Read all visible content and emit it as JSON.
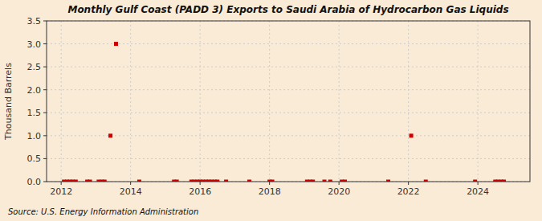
{
  "chart_data": {
    "type": "scatter",
    "title": "Monthly Gulf Coast (PADD 3) Exports to Saudi Arabia of Hydrocarbon Gas Liquids",
    "ylabel": "Thousand Barrels",
    "annotations": [
      "Source: U.S. Energy Information Administration"
    ],
    "x": [
      2013.42,
      2013.58,
      2022.08,
      2012.08,
      2012.17,
      2012.25,
      2012.33,
      2012.42,
      2012.75,
      2012.83,
      2013.08,
      2013.17,
      2013.25,
      2014.25,
      2015.25,
      2015.33,
      2015.75,
      2015.83,
      2015.92,
      2016.0,
      2016.08,
      2016.17,
      2016.25,
      2016.33,
      2016.42,
      2016.5,
      2016.75,
      2017.42,
      2018.0,
      2018.08,
      2019.08,
      2019.17,
      2019.25,
      2019.58,
      2019.75,
      2020.08,
      2020.17,
      2021.42,
      2022.5,
      2023.92,
      2024.5,
      2024.58,
      2024.67,
      2024.75
    ],
    "values": [
      1.0,
      3.0,
      1.0,
      0.0,
      0.0,
      0.0,
      0.0,
      0.0,
      0.0,
      0.0,
      0.0,
      0.0,
      0.0,
      0.0,
      0.0,
      0.0,
      0.0,
      0.0,
      0.0,
      0.0,
      0.0,
      0.0,
      0.0,
      0.0,
      0.0,
      0.0,
      0.0,
      0.0,
      0.0,
      0.0,
      0.0,
      0.0,
      0.0,
      0.0,
      0.0,
      0.0,
      0.0,
      0.0,
      0.0,
      0.0,
      0.0,
      0.0,
      0.0,
      0.0
    ],
    "color": "#cc0000",
    "marker": "square",
    "xlim": [
      2011.58,
      2025.5
    ],
    "xticks": [
      2012,
      2014,
      2016,
      2018,
      2020,
      2022,
      2024
    ],
    "ylim": [
      0.0,
      3.5
    ],
    "yticks": [
      {
        "value": 0.0,
        "label": "0.0"
      },
      0.5,
      {
        "value": 1.0,
        "label": "1.0"
      },
      1.5,
      {
        "value": 2.0,
        "label": "2.0"
      },
      2.5,
      {
        "value": 3.0,
        "label": "3.0"
      },
      3.5
    ],
    "grid": true
  }
}
